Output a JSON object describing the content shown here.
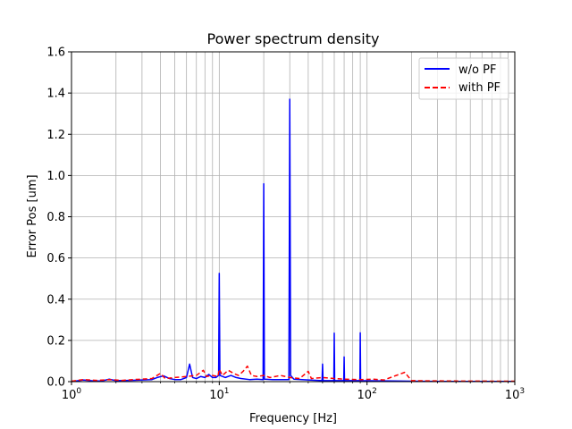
{
  "chart_data": {
    "type": "line",
    "title": "Power spectrum density",
    "xlabel": "Frequency [Hz]",
    "ylabel": "Error Pos [um]",
    "xscale": "log",
    "xlim": [
      1,
      1000
    ],
    "ylim": [
      0,
      1.6
    ],
    "grid": true,
    "legend_position": "top-right",
    "x_tick_labels": [
      {
        "base": "10",
        "exp": "0"
      },
      {
        "base": "10",
        "exp": "1"
      },
      {
        "base": "10",
        "exp": "2"
      },
      {
        "base": "10",
        "exp": "3"
      }
    ],
    "y_ticks": [
      0.0,
      0.2,
      0.4,
      0.6,
      0.8,
      1.0,
      1.2,
      1.4,
      1.6
    ],
    "y_tick_labels": [
      "0.0",
      "0.2",
      "0.4",
      "0.6",
      "0.8",
      "1.0",
      "1.2",
      "1.4",
      "1.6"
    ],
    "series": [
      {
        "name": "w/o PF",
        "color": "#0000ff",
        "linestyle": "solid",
        "points": [
          [
            1.0,
            0.0
          ],
          [
            1.2,
            0.008
          ],
          [
            1.4,
            0.004
          ],
          [
            1.6,
            0.003
          ],
          [
            1.8,
            0.012
          ],
          [
            2.0,
            0.005
          ],
          [
            2.5,
            0.006
          ],
          [
            3.0,
            0.008
          ],
          [
            3.5,
            0.01
          ],
          [
            3.8,
            0.02
          ],
          [
            4.2,
            0.028
          ],
          [
            4.6,
            0.015
          ],
          [
            5.0,
            0.01
          ],
          [
            5.5,
            0.01
          ],
          [
            6.0,
            0.02
          ],
          [
            6.3,
            0.085
          ],
          [
            6.6,
            0.02
          ],
          [
            7.0,
            0.015
          ],
          [
            7.5,
            0.025
          ],
          [
            8.0,
            0.02
          ],
          [
            8.5,
            0.035
          ],
          [
            9.0,
            0.02
          ],
          [
            9.5,
            0.02
          ],
          [
            9.9,
            0.03
          ],
          [
            10.0,
            0.525
          ],
          [
            10.1,
            0.03
          ],
          [
            11.0,
            0.02
          ],
          [
            12.0,
            0.03
          ],
          [
            13.0,
            0.02
          ],
          [
            14.0,
            0.015
          ],
          [
            16.0,
            0.01
          ],
          [
            18.0,
            0.012
          ],
          [
            19.8,
            0.01
          ],
          [
            20.0,
            0.96
          ],
          [
            20.2,
            0.012
          ],
          [
            23.0,
            0.01
          ],
          [
            26.0,
            0.01
          ],
          [
            29.6,
            0.01
          ],
          [
            30.0,
            1.37
          ],
          [
            30.4,
            0.03
          ],
          [
            32.0,
            0.012
          ],
          [
            40.0,
            0.008
          ],
          [
            49.6,
            0.005
          ],
          [
            50.0,
            0.085
          ],
          [
            50.4,
            0.005
          ],
          [
            59.6,
            0.005
          ],
          [
            60.0,
            0.235
          ],
          [
            60.4,
            0.005
          ],
          [
            69.6,
            0.005
          ],
          [
            70.0,
            0.12
          ],
          [
            70.4,
            0.005
          ],
          [
            89.5,
            0.005
          ],
          [
            90.0,
            0.237
          ],
          [
            90.5,
            0.005
          ],
          [
            120.0,
            0.004
          ],
          [
            150.0,
            0.003
          ],
          [
            200.0,
            0.002
          ],
          [
            300.0,
            0.001
          ],
          [
            500.0,
            0.001
          ],
          [
            1000.0,
            0.001
          ]
        ]
      },
      {
        "name": "with PF",
        "color": "#ff0000",
        "linestyle": "dashed",
        "points": [
          [
            1.0,
            0.002
          ],
          [
            1.2,
            0.01
          ],
          [
            1.5,
            0.006
          ],
          [
            1.8,
            0.01
          ],
          [
            2.2,
            0.006
          ],
          [
            2.6,
            0.01
          ],
          [
            3.0,
            0.012
          ],
          [
            3.5,
            0.015
          ],
          [
            4.0,
            0.04
          ],
          [
            4.3,
            0.015
          ],
          [
            5.0,
            0.02
          ],
          [
            6.0,
            0.025
          ],
          [
            7.0,
            0.03
          ],
          [
            7.8,
            0.055
          ],
          [
            8.2,
            0.025
          ],
          [
            9.0,
            0.03
          ],
          [
            9.8,
            0.025
          ],
          [
            10.0,
            0.06
          ],
          [
            10.5,
            0.03
          ],
          [
            11.5,
            0.055
          ],
          [
            12.5,
            0.04
          ],
          [
            13.5,
            0.03
          ],
          [
            14.5,
            0.05
          ],
          [
            15.5,
            0.075
          ],
          [
            16.5,
            0.03
          ],
          [
            18.0,
            0.025
          ],
          [
            20.0,
            0.03
          ],
          [
            22.0,
            0.02
          ],
          [
            24.0,
            0.025
          ],
          [
            26.0,
            0.03
          ],
          [
            30.0,
            0.02
          ],
          [
            35.0,
            0.015
          ],
          [
            40.0,
            0.05
          ],
          [
            42.0,
            0.015
          ],
          [
            50.0,
            0.02
          ],
          [
            60.0,
            0.015
          ],
          [
            70.0,
            0.012
          ],
          [
            90.0,
            0.01
          ],
          [
            110.0,
            0.012
          ],
          [
            130.0,
            0.008
          ],
          [
            180.0,
            0.045
          ],
          [
            200.0,
            0.005
          ],
          [
            250.0,
            0.004
          ],
          [
            400.0,
            0.003
          ],
          [
            1000.0,
            0.002
          ]
        ]
      }
    ]
  }
}
